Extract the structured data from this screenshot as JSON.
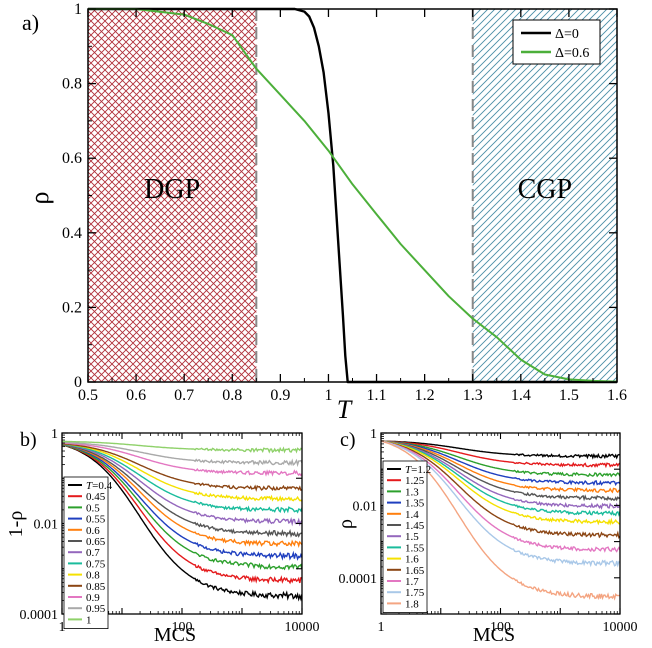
{
  "chart_data": [
    {
      "panel_label": "a)",
      "type": "line",
      "xlabel": "T",
      "ylabel": "ρ",
      "xlim": [
        0.5,
        1.6
      ],
      "ylim": [
        0,
        1
      ],
      "xticks": [
        "0.5",
        "0.6",
        "0.7",
        "0.8",
        "0.9",
        "1",
        "1.1",
        "1.2",
        "1.3",
        "1.4",
        "1.5",
        "1.6"
      ],
      "yticks": [
        "0",
        "0.2",
        "0.4",
        "0.6",
        "0.8",
        "1"
      ],
      "regions": [
        {
          "label": "DGP",
          "x": [
            0.5,
            0.85
          ],
          "color": "#c0392b",
          "pattern": "crosshatch"
        },
        {
          "label": "CGP",
          "x": [
            1.3,
            1.6
          ],
          "color": "#3a7c94",
          "pattern": "diagonal"
        }
      ],
      "legend": {
        "placement": "top-right"
      },
      "series": [
        {
          "name": "Δ=0",
          "color": "#000000",
          "x": [
            0.5,
            0.9,
            0.93,
            0.95,
            0.96,
            0.97,
            0.98,
            0.99,
            1.0,
            1.01,
            1.02,
            1.03,
            1.035,
            1.04,
            1.05,
            1.6
          ],
          "y": [
            1.0,
            1.0,
            1.0,
            0.993,
            0.98,
            0.95,
            0.9,
            0.83,
            0.72,
            0.58,
            0.38,
            0.18,
            0.07,
            0.0,
            0.0,
            0.0
          ]
        },
        {
          "name": "Δ=0.6",
          "color": "#4caf3a",
          "x": [
            0.5,
            0.6,
            0.7,
            0.75,
            0.8,
            0.85,
            0.9,
            0.95,
            1.0,
            1.05,
            1.1,
            1.15,
            1.2,
            1.25,
            1.3,
            1.35,
            1.4,
            1.45,
            1.5,
            1.55,
            1.6
          ],
          "y": [
            1.0,
            1.0,
            0.985,
            0.96,
            0.93,
            0.84,
            0.77,
            0.7,
            0.62,
            0.53,
            0.45,
            0.37,
            0.3,
            0.23,
            0.17,
            0.12,
            0.06,
            0.02,
            0.007,
            0.003,
            0.001
          ]
        }
      ]
    },
    {
      "panel_label": "b)",
      "type": "line",
      "xlabel": "MCS",
      "ylabel": "1-ρ",
      "xscale": "log",
      "yscale": "log",
      "xlim": [
        1,
        10000
      ],
      "ylim": [
        0.0001,
        1
      ],
      "xticks": [
        "1",
        "100",
        "10000"
      ],
      "yticks": [
        "1",
        "0.01",
        "0.0001"
      ],
      "legend": {
        "placement": "bottom-left",
        "title_prefix": "T=",
        "entries": [
          "0.4",
          "0.45",
          "0.5",
          "0.55",
          "0.6",
          "0.65",
          "0.7",
          "0.75",
          "0.8",
          "0.85",
          "0.9",
          "0.95",
          "1"
        ]
      },
      "series": [
        {
          "name": "0.4",
          "color": "#000000",
          "y_start": 0.55,
          "y_end": 0.00025
        },
        {
          "name": "0.45",
          "color": "#e41a1c",
          "y_start": 0.55,
          "y_end": 0.00055
        },
        {
          "name": "0.5",
          "color": "#2ca02c",
          "y_start": 0.55,
          "y_end": 0.0011
        },
        {
          "name": "0.55",
          "color": "#1f3fbf",
          "y_start": 0.56,
          "y_end": 0.0019
        },
        {
          "name": "0.6",
          "color": "#ff7f0e",
          "y_start": 0.56,
          "y_end": 0.0035
        },
        {
          "name": "0.65",
          "color": "#555555",
          "y_start": 0.56,
          "y_end": 0.006
        },
        {
          "name": "0.7",
          "color": "#9467bd",
          "y_start": 0.57,
          "y_end": 0.011
        },
        {
          "name": "0.75",
          "color": "#1abc9c",
          "y_start": 0.57,
          "y_end": 0.02
        },
        {
          "name": "0.8",
          "color": "#f5e100",
          "y_start": 0.58,
          "y_end": 0.035
        },
        {
          "name": "0.85",
          "color": "#8b4513",
          "y_start": 0.58,
          "y_end": 0.06
        },
        {
          "name": "0.9",
          "color": "#e377c2",
          "y_start": 0.6,
          "y_end": 0.13
        },
        {
          "name": "0.95",
          "color": "#a9a9a9",
          "y_start": 0.62,
          "y_end": 0.22
        },
        {
          "name": "1",
          "color": "#8fd16a",
          "y_start": 0.65,
          "y_end": 0.42
        }
      ]
    },
    {
      "panel_label": "c)",
      "type": "line",
      "xlabel": "MCS",
      "ylabel": "ρ",
      "xscale": "log",
      "yscale": "log",
      "xlim": [
        1,
        10000
      ],
      "ylim": [
        1e-05,
        1
      ],
      "xticks": [
        "1",
        "100",
        "10000"
      ],
      "yticks": [
        "1",
        "0.01",
        "0.0001"
      ],
      "legend": {
        "placement": "bottom-left",
        "title_prefix": "T=",
        "entries": [
          "1.2",
          "1.25",
          "1.3",
          "1.35",
          "1.4",
          "1.45",
          "1.5",
          "1.55",
          "1.6",
          "1.65",
          "1.7",
          "1.75",
          "1.8"
        ]
      },
      "series": [
        {
          "name": "1.2",
          "color": "#000000",
          "y_start": 0.6,
          "y_end": 0.23
        },
        {
          "name": "1.25",
          "color": "#e41a1c",
          "y_start": 0.6,
          "y_end": 0.13
        },
        {
          "name": "1.3",
          "color": "#2ca02c",
          "y_start": 0.6,
          "y_end": 0.07
        },
        {
          "name": "1.35",
          "color": "#1f3fbf",
          "y_start": 0.6,
          "y_end": 0.042
        },
        {
          "name": "1.4",
          "color": "#ff7f0e",
          "y_start": 0.6,
          "y_end": 0.026
        },
        {
          "name": "1.45",
          "color": "#555555",
          "y_start": 0.6,
          "y_end": 0.016
        },
        {
          "name": "1.5",
          "color": "#9467bd",
          "y_start": 0.6,
          "y_end": 0.0095
        },
        {
          "name": "1.55",
          "color": "#1abc9c",
          "y_start": 0.6,
          "y_end": 0.006
        },
        {
          "name": "1.6",
          "color": "#f5e100",
          "y_start": 0.6,
          "y_end": 0.0035
        },
        {
          "name": "1.65",
          "color": "#8b4513",
          "y_start": 0.6,
          "y_end": 0.0015
        },
        {
          "name": "1.7",
          "color": "#e377c2",
          "y_start": 0.6,
          "y_end": 0.0006
        },
        {
          "name": "1.75",
          "color": "#a9c8e8",
          "y_start": 0.6,
          "y_end": 0.00025
        },
        {
          "name": "1.8",
          "color": "#f4a582",
          "y_start": 0.6,
          "y_end": 3e-05
        }
      ]
    }
  ]
}
